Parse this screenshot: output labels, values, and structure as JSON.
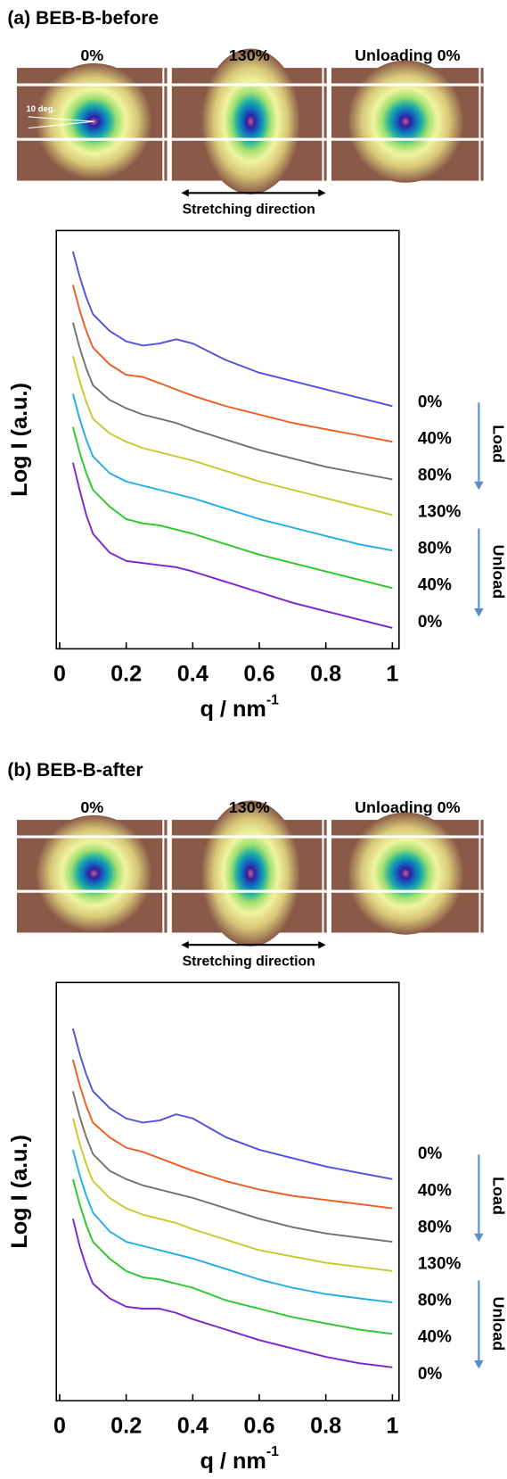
{
  "chart_data": [
    {
      "type": "line",
      "title": "(a) BEB-B-before",
      "image_labels": [
        "0%",
        "130%",
        "Unloading 0%"
      ],
      "angle_label": "10 deg.",
      "direction_label": "Stretching direction",
      "ylabel": "Log I (a.u.)",
      "xlabel": "q / nm",
      "xlabel_sup": "-1",
      "group_labels": [
        "Load",
        "Unload"
      ],
      "x": [
        0.04,
        0.06,
        0.08,
        0.1,
        0.15,
        0.2,
        0.25,
        0.3,
        0.35,
        0.4,
        0.5,
        0.6,
        0.7,
        0.8,
        0.9,
        1.0
      ],
      "xlim": [
        -0.01,
        1.02
      ],
      "xticks": [
        0,
        0.2,
        0.4,
        0.6,
        0.8,
        1
      ],
      "ylim": [
        0,
        10
      ],
      "series": [
        {
          "name": "0%",
          "color": "#4f4fe0",
          "values": [
            9.5,
            8.9,
            8.4,
            8.0,
            7.6,
            7.35,
            7.25,
            7.3,
            7.4,
            7.3,
            6.9,
            6.6,
            6.4,
            6.2,
            6.0,
            5.8
          ]
        },
        {
          "name": "40%",
          "color": "#f05a1e",
          "values": [
            8.7,
            8.1,
            7.6,
            7.2,
            6.8,
            6.55,
            6.5,
            6.35,
            6.2,
            6.05,
            5.8,
            5.6,
            5.4,
            5.25,
            5.1,
            4.95
          ]
        },
        {
          "name": "80%",
          "color": "#707070",
          "values": [
            7.8,
            7.2,
            6.7,
            6.3,
            5.95,
            5.75,
            5.6,
            5.5,
            5.4,
            5.25,
            5.0,
            4.75,
            4.55,
            4.35,
            4.2,
            4.05
          ]
        },
        {
          "name": "130%",
          "color": "#c8c82a",
          "values": [
            7.0,
            6.4,
            5.9,
            5.5,
            5.15,
            4.95,
            4.8,
            4.7,
            4.6,
            4.5,
            4.25,
            4.0,
            3.8,
            3.6,
            3.4,
            3.2
          ]
        },
        {
          "name": "80%",
          "color": "#1eaee6",
          "values": [
            6.1,
            5.5,
            5.0,
            4.6,
            4.2,
            4.0,
            3.9,
            3.8,
            3.7,
            3.6,
            3.35,
            3.1,
            2.9,
            2.7,
            2.5,
            2.35
          ]
        },
        {
          "name": "40%",
          "color": "#28c828",
          "values": [
            5.3,
            4.7,
            4.2,
            3.8,
            3.4,
            3.1,
            3.0,
            2.95,
            2.85,
            2.75,
            2.5,
            2.25,
            2.05,
            1.85,
            1.65,
            1.45
          ]
        },
        {
          "name": "0%",
          "color": "#7a22d4",
          "values": [
            4.45,
            3.8,
            3.2,
            2.75,
            2.3,
            2.1,
            2.05,
            2.0,
            1.95,
            1.85,
            1.6,
            1.35,
            1.1,
            0.9,
            0.7,
            0.5
          ]
        }
      ]
    },
    {
      "type": "line",
      "title": "(b) BEB-B-after",
      "image_labels": [
        "0%",
        "130%",
        "Unloading 0%"
      ],
      "direction_label": "Stretching direction",
      "ylabel": "Log I (a.u.)",
      "xlabel": "q / nm",
      "xlabel_sup": "-1",
      "group_labels": [
        "Load",
        "Unload"
      ],
      "x": [
        0.04,
        0.06,
        0.08,
        0.1,
        0.15,
        0.2,
        0.25,
        0.3,
        0.35,
        0.4,
        0.5,
        0.6,
        0.7,
        0.8,
        0.9,
        1.0
      ],
      "xlim": [
        -0.01,
        1.02
      ],
      "xticks": [
        0,
        0.2,
        0.4,
        0.6,
        0.8,
        1
      ],
      "ylim": [
        0,
        10
      ],
      "series": [
        {
          "name": "0%",
          "color": "#4f4fe0",
          "values": [
            8.9,
            8.3,
            7.8,
            7.4,
            7.0,
            6.75,
            6.65,
            6.7,
            6.85,
            6.75,
            6.3,
            6.0,
            5.8,
            5.6,
            5.45,
            5.3
          ]
        },
        {
          "name": "40%",
          "color": "#f05a1e",
          "values": [
            8.15,
            7.55,
            7.05,
            6.65,
            6.3,
            6.05,
            5.95,
            5.8,
            5.65,
            5.5,
            5.25,
            5.05,
            4.9,
            4.8,
            4.7,
            4.6
          ]
        },
        {
          "name": "80%",
          "color": "#707070",
          "values": [
            7.4,
            6.8,
            6.3,
            5.9,
            5.5,
            5.3,
            5.15,
            5.05,
            4.95,
            4.85,
            4.6,
            4.35,
            4.15,
            4.0,
            3.9,
            3.8
          ]
        },
        {
          "name": "130%",
          "color": "#c8c82a",
          "values": [
            6.75,
            6.15,
            5.65,
            5.25,
            4.85,
            4.6,
            4.45,
            4.35,
            4.25,
            4.1,
            3.85,
            3.6,
            3.45,
            3.3,
            3.2,
            3.1
          ]
        },
        {
          "name": "80%",
          "color": "#1eaee6",
          "values": [
            6.0,
            5.4,
            4.9,
            4.5,
            4.05,
            3.8,
            3.7,
            3.6,
            3.5,
            3.4,
            3.15,
            2.9,
            2.7,
            2.55,
            2.45,
            2.35
          ]
        },
        {
          "name": "40%",
          "color": "#28c828",
          "values": [
            5.3,
            4.7,
            4.2,
            3.8,
            3.4,
            3.1,
            2.95,
            2.9,
            2.8,
            2.7,
            2.4,
            2.2,
            2.0,
            1.85,
            1.7,
            1.6
          ]
        },
        {
          "name": "0%",
          "color": "#7a22d4",
          "values": [
            4.35,
            3.7,
            3.2,
            2.8,
            2.45,
            2.25,
            2.2,
            2.2,
            2.1,
            1.95,
            1.7,
            1.45,
            1.25,
            1.05,
            0.9,
            0.8
          ]
        }
      ]
    }
  ]
}
